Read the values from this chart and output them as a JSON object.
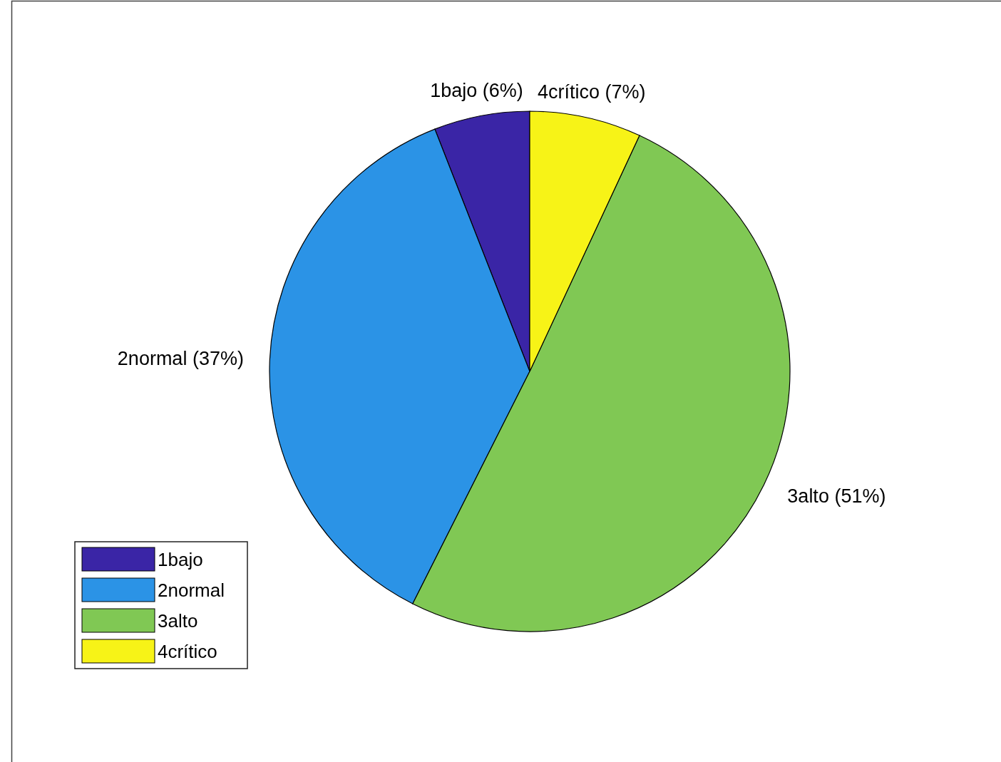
{
  "chart_data": {
    "type": "pie",
    "categories": [
      "1bajo",
      "2normal",
      "3alto",
      "4crítico"
    ],
    "values": [
      6,
      37,
      51,
      7
    ],
    "colors": [
      "#3a25a6",
      "#2b93e6",
      "#80c854",
      "#f7f317"
    ],
    "value_labels": [
      "1bajo  (6%)",
      "2normal (37%)",
      "3alto (51%)",
      "4crítico  (7%)"
    ],
    "legend": "bottom left"
  }
}
